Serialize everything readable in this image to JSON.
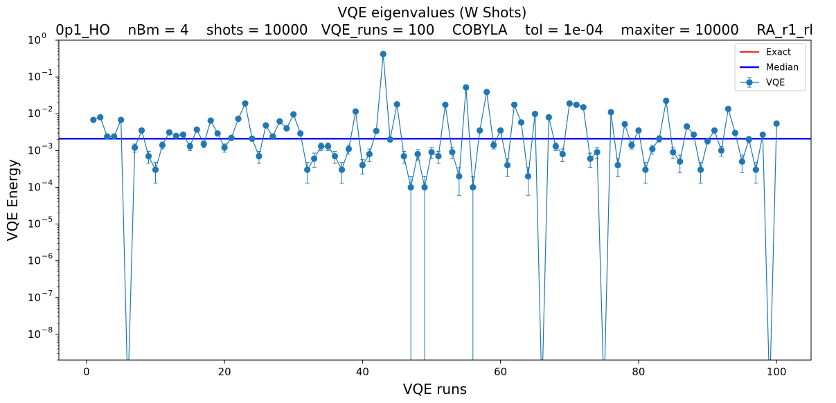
{
  "chart_data": {
    "type": "scatter",
    "title": "VQE eigenvalues (W Shots)",
    "subtitle": "0p1_HO    nBm = 4    shots = 10000   VQE_runs = 100    COBYLA    tol = 1e-04    maxiter = 10000    RA_r1_rl",
    "xlabel": "VQE runs",
    "ylabel": "VQE Energy",
    "xlim": [
      -4,
      105
    ],
    "ylim": [
      2e-09,
      1
    ],
    "yscale": "log",
    "x_ticks": [
      0,
      20,
      40,
      60,
      80,
      100
    ],
    "y_ticks": [
      1e-08,
      1e-07,
      1e-06,
      1e-05,
      0.0001,
      0.001,
      0.01,
      0.1,
      1
    ],
    "y_tick_labels": [
      {
        "base": "10",
        "exp": "−8"
      },
      {
        "base": "10",
        "exp": "−7"
      },
      {
        "base": "10",
        "exp": "−6"
      },
      {
        "base": "10",
        "exp": "−5"
      },
      {
        "base": "10",
        "exp": "−4"
      },
      {
        "base": "10",
        "exp": "−3"
      },
      {
        "base": "10",
        "exp": "−2"
      },
      {
        "base": "10",
        "exp": "−1"
      },
      {
        "base": "10",
        "exp": "0"
      }
    ],
    "grid": false,
    "legend": {
      "position": "top-right",
      "entries": [
        {
          "label": "Exact",
          "color": "#ff0000",
          "kind": "line"
        },
        {
          "label": "Median",
          "color": "#0000ff",
          "kind": "line"
        },
        {
          "label": "VQE",
          "color": "#1f77b4",
          "kind": "errorbar"
        }
      ]
    },
    "median": 0.0021,
    "series": [
      {
        "name": "VQE",
        "color": "#1f77b4",
        "x": [
          1,
          2,
          3,
          4,
          5,
          6,
          7,
          8,
          9,
          10,
          11,
          12,
          13,
          14,
          15,
          16,
          17,
          18,
          19,
          20,
          21,
          22,
          23,
          24,
          25,
          26,
          27,
          28,
          29,
          30,
          31,
          32,
          33,
          34,
          35,
          36,
          37,
          38,
          39,
          40,
          41,
          42,
          43,
          44,
          45,
          46,
          47,
          48,
          49,
          50,
          51,
          52,
          53,
          54,
          55,
          56,
          57,
          58,
          59,
          60,
          61,
          62,
          63,
          64,
          65,
          66,
          67,
          68,
          69,
          70,
          71,
          72,
          73,
          74,
          75,
          76,
          77,
          78,
          79,
          80,
          81,
          82,
          83,
          84,
          85,
          86,
          87,
          88,
          89,
          90,
          91,
          92,
          93,
          94,
          95,
          96,
          97,
          98,
          99,
          100
        ],
        "y": [
          0.0068,
          0.008,
          0.0024,
          0.0024,
          0.0068,
          0,
          0.0012,
          0.0035,
          0.0007,
          0.0003,
          0.0014,
          0.0031,
          0.0025,
          0.0027,
          0.0013,
          0.0037,
          0.0015,
          0.0065,
          0.0029,
          0.0012,
          0.0022,
          0.0073,
          0.019,
          0.0021,
          0.0007,
          0.0048,
          0.0024,
          0.0062,
          0.004,
          0.0096,
          0.0029,
          0.0003,
          0.0006,
          0.0013,
          0.0013,
          0.0007,
          0.0003,
          0.0011,
          0.0115,
          0.0004,
          0.0008,
          0.0034,
          0.42,
          0.002,
          0.018,
          0.0007,
          0.0001,
          0.0008,
          0.0001,
          0.0009,
          0.0007,
          0.0175,
          0.0009,
          0.0002,
          0.052,
          0.0001,
          0.0035,
          0.039,
          0.0014,
          0.0035,
          0.0004,
          0.0175,
          0.0058,
          0.0002,
          0.0099,
          0,
          0.008,
          0.0013,
          0.0008,
          0.019,
          0.0175,
          0.015,
          0.0006,
          0.0009,
          0,
          0.011,
          0.0004,
          0.0052,
          0.0014,
          0.0035,
          0.0003,
          0.0011,
          0.0021,
          0.0225,
          0.0009,
          0.0005,
          0.0045,
          0.0027,
          0.0003,
          0.0018,
          0.0035,
          0.001,
          0.0135,
          0.003,
          0.0005,
          0.002,
          0.0003,
          0.0027,
          0,
          0.0054
        ],
        "y_err": [
          0,
          0,
          0,
          0,
          0,
          0,
          0.0003,
          0,
          0.00025,
          0.00017,
          0.0003,
          0,
          0,
          0,
          0.0003,
          0,
          0.0003,
          0,
          0,
          0.0003,
          0,
          0,
          0,
          0.0003,
          0.00025,
          0,
          0.0004,
          0,
          0,
          0,
          0,
          0.00017,
          0.00025,
          0.0003,
          0.0003,
          0.00025,
          0.00017,
          0.0003,
          0,
          0.00017,
          0.0003,
          0,
          0,
          0.0003,
          0,
          0.00025,
          0.0001,
          0.00025,
          0.0001,
          0.0003,
          0.00025,
          0,
          0.0003,
          0.00014,
          0,
          0.0001,
          0,
          0,
          0.0003,
          0,
          0.0002,
          0,
          0,
          0.00014,
          0,
          0,
          0,
          0.0003,
          0.0003,
          0,
          0,
          0,
          0.00025,
          0.0003,
          0,
          0,
          0.0002,
          0,
          0.0003,
          0,
          0.00017,
          0.0003,
          0.0004,
          0,
          0.0003,
          0.00025,
          0,
          0,
          0.00017,
          0.0003,
          0,
          0.0003,
          0,
          0,
          0.00025,
          0.0004,
          0.00017,
          0,
          0,
          0
        ]
      }
    ]
  }
}
